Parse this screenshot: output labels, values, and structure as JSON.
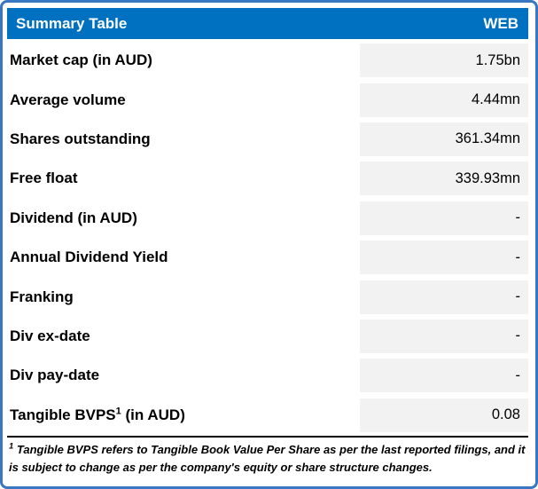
{
  "colors": {
    "frame_border": "#3A77C2",
    "header_bg": "#0070C0",
    "header_text": "#FFFFFF",
    "value_cell_bg": "#F2F2F2",
    "text": "#000000",
    "separator": "#000000"
  },
  "chart_data": {
    "type": "table",
    "title": "Summary Table",
    "header_right": "WEB",
    "rows": [
      {
        "label": "Market cap (in AUD)",
        "value": "1.75bn"
      },
      {
        "label": "Average volume",
        "value": "4.44mn"
      },
      {
        "label": "Shares outstanding",
        "value": "361.34mn"
      },
      {
        "label": "Free float",
        "value": "339.93mn"
      },
      {
        "label": "Dividend (in AUD)",
        "value": "-"
      },
      {
        "label": "Annual Dividend Yield",
        "value": "-"
      },
      {
        "label": "Franking",
        "value": "-"
      },
      {
        "label": "Div ex-date",
        "value": "-"
      },
      {
        "label": "Div pay-date",
        "value": "-"
      },
      {
        "label": "Tangible BVPS",
        "label_sup": "1",
        "label_suffix": " (in AUD)",
        "value": "0.08"
      }
    ],
    "footnote_sup": "1",
    "footnote_text": " Tangible BVPS refers to Tangible Book Value Per Share as per the last reported filings, and it is subject to change as per the company's equity or share structure changes."
  }
}
